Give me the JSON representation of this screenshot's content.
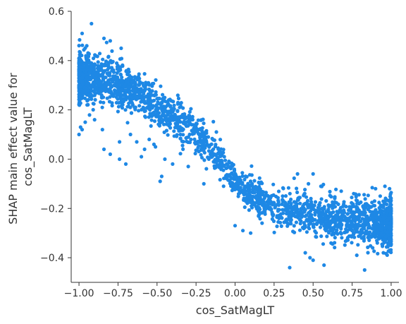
{
  "chart_data": {
    "type": "scatter",
    "xlabel": "cos_SatMagLT",
    "ylabel_lines": [
      "SHAP main effect value for",
      "cos_SatMagLT"
    ],
    "xlim": [
      -1.05,
      1.05
    ],
    "ylim": [
      -0.5,
      0.6
    ],
    "x_ticks": [
      -1.0,
      -0.75,
      -0.5,
      -0.25,
      0.0,
      0.25,
      0.5,
      0.75,
      1.0
    ],
    "x_tick_labels": [
      "−1.00",
      "−0.75",
      "−0.50",
      "−0.25",
      "0.00",
      "0.25",
      "0.50",
      "0.75",
      "1.00"
    ],
    "y_ticks": [
      -0.4,
      -0.2,
      0.0,
      0.2,
      0.4,
      0.6
    ],
    "y_tick_labels": [
      "−0.4",
      "−0.2",
      "0.0",
      "0.2",
      "0.4",
      "0.6"
    ],
    "grid": false,
    "point_color": "#1E88E5",
    "trend": {
      "x": [
        -1.0,
        -0.9,
        -0.8,
        -0.7,
        -0.6,
        -0.5,
        -0.4,
        -0.3,
        -0.25,
        -0.2,
        -0.15,
        -0.1,
        -0.05,
        0.0,
        0.1,
        0.2,
        0.3,
        0.4,
        0.5,
        0.6,
        0.7,
        0.8,
        0.9,
        1.0
      ],
      "y": [
        0.33,
        0.33,
        0.32,
        0.29,
        0.26,
        0.21,
        0.17,
        0.13,
        0.11,
        0.08,
        0.03,
        0.0,
        -0.04,
        -0.08,
        -0.14,
        -0.18,
        -0.21,
        -0.22,
        -0.23,
        -0.24,
        -0.25,
        -0.25,
        -0.26,
        -0.27
      ],
      "spread": 0.035
    },
    "outliers": [
      [
        -0.92,
        0.55
      ],
      [
        -0.98,
        0.51
      ],
      [
        -0.84,
        0.49
      ],
      [
        -0.8,
        0.48
      ],
      [
        -0.95,
        0.46
      ],
      [
        -0.73,
        0.45
      ],
      [
        -0.98,
        0.12
      ],
      [
        -1.0,
        0.1
      ],
      [
        -0.99,
        0.13
      ],
      [
        -0.96,
        0.15
      ],
      [
        -0.9,
        0.16
      ],
      [
        -0.85,
        0.12
      ],
      [
        -0.74,
        0.07
      ],
      [
        -0.67,
        0.1
      ],
      [
        -0.63,
        0.07
      ],
      [
        -0.58,
        0.04
      ],
      [
        -0.55,
        0.08
      ],
      [
        -0.74,
        0.0
      ],
      [
        -0.7,
        -0.02
      ],
      [
        -0.45,
        0.0
      ],
      [
        -0.47,
        -0.07
      ],
      [
        -0.48,
        -0.09
      ],
      [
        -0.51,
        0.05
      ],
      [
        -0.8,
        0.02
      ],
      [
        -0.84,
        0.04
      ],
      [
        -0.6,
        0.01
      ],
      [
        -0.52,
        0.06
      ],
      [
        -0.3,
        -0.03
      ],
      [
        -0.2,
        -0.1
      ],
      [
        0.0,
        -0.27
      ],
      [
        0.05,
        -0.29
      ],
      [
        0.1,
        -0.3
      ],
      [
        0.35,
        -0.44
      ],
      [
        0.48,
        -0.4
      ],
      [
        0.5,
        -0.41
      ],
      [
        0.45,
        -0.38
      ],
      [
        0.57,
        -0.43
      ],
      [
        0.83,
        -0.45
      ],
      [
        0.78,
        -0.39
      ],
      [
        0.95,
        -0.38
      ],
      [
        0.99,
        -0.37
      ],
      [
        0.4,
        -0.06
      ],
      [
        0.5,
        -0.06
      ],
      [
        0.47,
        -0.1
      ],
      [
        0.68,
        -0.13
      ],
      [
        0.55,
        -0.11
      ],
      [
        0.96,
        -0.11
      ],
      [
        0.9,
        -0.12
      ],
      [
        0.99,
        -0.12
      ],
      [
        0.76,
        -0.14
      ],
      [
        -0.35,
        0.1
      ],
      [
        -0.28,
        0.16
      ],
      [
        -0.4,
        -0.02
      ]
    ]
  }
}
